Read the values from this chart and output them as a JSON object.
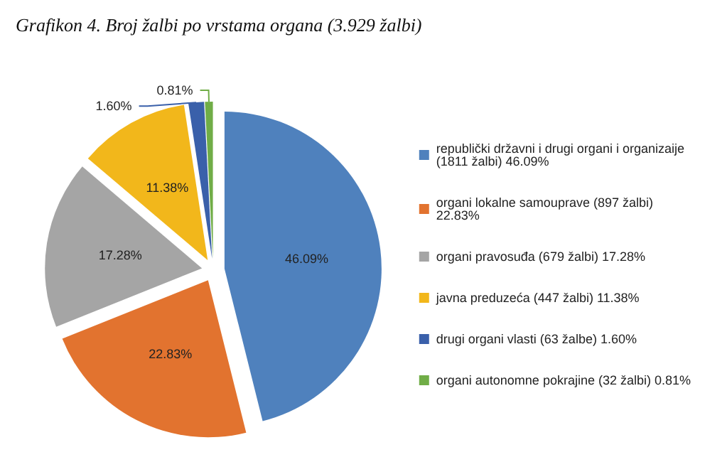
{
  "chart_data": {
    "type": "pie",
    "title": "Grafikon 4. Broj žalbi po vrstama organa (3.929 žalbi)",
    "categories": [
      "republički državni i drugi organi i organizaije (1811 žalbi) 46.09%",
      "organi lokalne samouprave (897 žalbi) 22.83%",
      "organi pravosuđa (679 žalbi) 17.28%",
      "javna preduzeća (447 žalbi) 11.38%",
      "drugi organi vlasti (63 žalbe) 1.60%",
      "organi autonomne pokrajine (32 žalbi) 0.81%"
    ],
    "values": [
      46.09,
      22.83,
      17.28,
      11.38,
      1.6,
      0.81
    ],
    "value_labels": [
      "46.09%",
      "22.83%",
      "17.28%",
      "11.38%",
      "1.60%",
      "0.81%"
    ],
    "colors": [
      "#4f81bd",
      "#e2732f",
      "#a5a5a5",
      "#f2b71b",
      "#3a60aa",
      "#70ad47"
    ],
    "legend": "right"
  }
}
